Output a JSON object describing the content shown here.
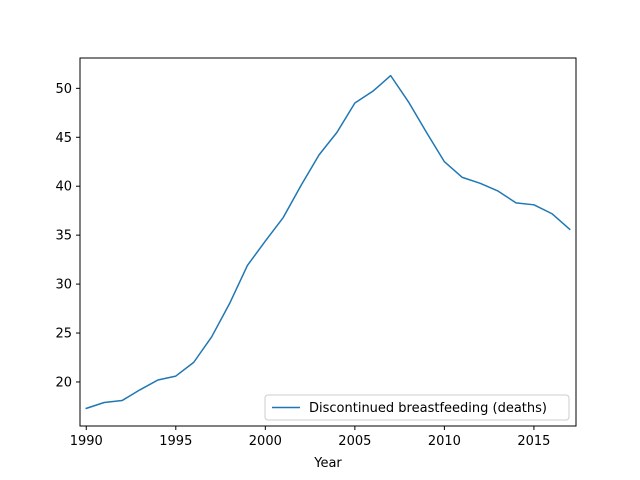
{
  "chart_data": {
    "type": "line",
    "xlabel": "Year",
    "ylabel": "",
    "xlim": [
      1989.65,
      2017.35
    ],
    "ylim": [
      15.5,
      53.1
    ],
    "xticks": [
      1990,
      1995,
      2000,
      2005,
      2010,
      2015
    ],
    "yticks": [
      20,
      25,
      30,
      35,
      40,
      45,
      50
    ],
    "grid": false,
    "legend_position": "lower-right",
    "line_color": "#1f77b4",
    "x": [
      1990,
      1991,
      1992,
      1993,
      1994,
      1995,
      1996,
      1997,
      1998,
      1999,
      2000,
      2001,
      2002,
      2003,
      2004,
      2005,
      2006,
      2007,
      2008,
      2009,
      2010,
      2011,
      2012,
      2013,
      2014,
      2015,
      2016,
      2017
    ],
    "series": [
      {
        "name": "Discontinued breastfeeding (deaths)",
        "values": [
          17.3,
          17.9,
          18.1,
          19.2,
          20.2,
          20.6,
          22.0,
          24.6,
          28.0,
          31.9,
          34.4,
          36.8,
          40.1,
          43.2,
          45.5,
          48.5,
          49.7,
          51.3,
          48.6,
          45.5,
          42.5,
          40.9,
          40.3,
          39.5,
          38.3,
          38.1,
          37.2,
          35.6
        ]
      }
    ]
  }
}
